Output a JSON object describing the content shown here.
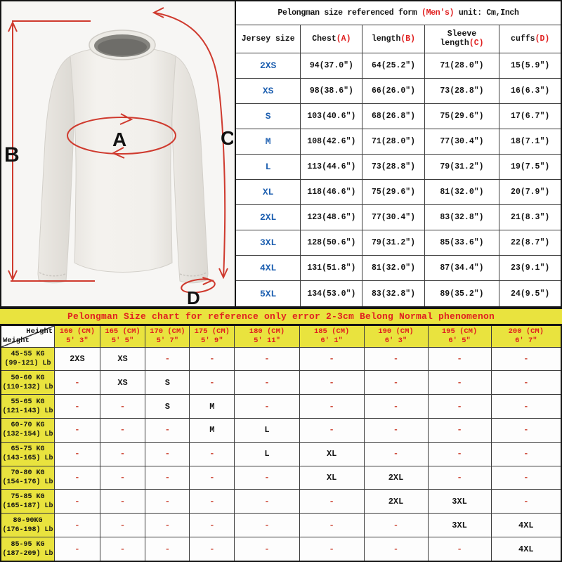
{
  "colors": {
    "accent_red": "#e02020",
    "size_blue": "#1d5fb0",
    "chart_yellow": "#e9e33e",
    "dash_red": "#cc4433",
    "arrow_red": "#cf3a2e"
  },
  "diagram": {
    "labels": {
      "a": "A",
      "b": "B",
      "c": "C",
      "d": "D"
    }
  },
  "size_table": {
    "title_prefix": "Pelongman size referenced form ",
    "title_highlight": "(Men's)",
    "title_suffix": "  unit: Cm,Inch",
    "columns": [
      {
        "label": "Jersey size",
        "letter": ""
      },
      {
        "label": "Chest",
        "letter": "(A)"
      },
      {
        "label": "length",
        "letter": "(B)"
      },
      {
        "label": "Sleeve length",
        "letter": "(C)"
      },
      {
        "label": "cuffs",
        "letter": "(D)"
      }
    ],
    "rows": [
      {
        "size": "2XS",
        "chest": "94(37.0\")",
        "length": "64(25.2\")",
        "sleeve": "71(28.0\")",
        "cuffs": "15(5.9\")"
      },
      {
        "size": "XS",
        "chest": "98(38.6\")",
        "length": "66(26.0\")",
        "sleeve": "73(28.8\")",
        "cuffs": "16(6.3\")"
      },
      {
        "size": "S",
        "chest": "103(40.6\")",
        "length": "68(26.8\")",
        "sleeve": "75(29.6\")",
        "cuffs": "17(6.7\")"
      },
      {
        "size": "M",
        "chest": "108(42.6\")",
        "length": "71(28.0\")",
        "sleeve": "77(30.4\")",
        "cuffs": "18(7.1\")"
      },
      {
        "size": "L",
        "chest": "113(44.6\")",
        "length": "73(28.8\")",
        "sleeve": "79(31.2\")",
        "cuffs": "19(7.5\")"
      },
      {
        "size": "XL",
        "chest": "118(46.6\")",
        "length": "75(29.6\")",
        "sleeve": "81(32.0\")",
        "cuffs": "20(7.9\")"
      },
      {
        "size": "2XL",
        "chest": "123(48.6\")",
        "length": "77(30.4\")",
        "sleeve": "83(32.8\")",
        "cuffs": "21(8.3\")"
      },
      {
        "size": "3XL",
        "chest": "128(50.6\")",
        "length": "79(31.2\")",
        "sleeve": "85(33.6\")",
        "cuffs": "22(8.7\")"
      },
      {
        "size": "4XL",
        "chest": "131(51.8\")",
        "length": "81(32.0\")",
        "sleeve": "87(34.4\")",
        "cuffs": "23(9.1\")"
      },
      {
        "size": "5XL",
        "chest": "134(53.0\")",
        "length": "83(32.8\")",
        "sleeve": "89(35.2\")",
        "cuffs": "24(9.5\")"
      }
    ]
  },
  "fit_chart": {
    "title": "Pelongman Size chart for reference only error 2-3cm Belong Normal phenomenon",
    "corner": {
      "height_label": "Height",
      "weight_label": "Weight"
    },
    "heights": [
      {
        "cm": "160 (CM)",
        "ft": "5′ 3″"
      },
      {
        "cm": "165 (CM)",
        "ft": "5′ 5″"
      },
      {
        "cm": "170 (CM)",
        "ft": "5′ 7″"
      },
      {
        "cm": "175 (CM)",
        "ft": "5′ 9″"
      },
      {
        "cm": "180 (CM)",
        "ft": "5′ 11″"
      },
      {
        "cm": "185 (CM)",
        "ft": "6′ 1″"
      },
      {
        "cm": "190 (CM)",
        "ft": "6′ 3″"
      },
      {
        "cm": "195 (CM)",
        "ft": "6′ 5″"
      },
      {
        "cm": "200 (CM)",
        "ft": "6′ 7″"
      }
    ],
    "rows": [
      {
        "kg": "45-55 KG",
        "lb": "(99-121) Lb",
        "cells": [
          "2XS",
          "XS",
          "-",
          "-",
          "-",
          "-",
          "-",
          "-",
          "-"
        ]
      },
      {
        "kg": "50-60 KG",
        "lb": "(110-132) Lb",
        "cells": [
          "-",
          "XS",
          "S",
          "-",
          "-",
          "-",
          "-",
          "-",
          "-"
        ]
      },
      {
        "kg": "55-65 KG",
        "lb": "(121-143) Lb",
        "cells": [
          "-",
          "-",
          "S",
          "M",
          "-",
          "-",
          "-",
          "-",
          "-"
        ]
      },
      {
        "kg": "60-70 KG",
        "lb": "(132-154) Lb",
        "cells": [
          "-",
          "-",
          "-",
          "M",
          "L",
          "-",
          "-",
          "-",
          "-"
        ]
      },
      {
        "kg": "65-75 KG",
        "lb": "(143-165) Lb",
        "cells": [
          "-",
          "-",
          "-",
          "-",
          "L",
          "XL",
          "-",
          "-",
          "-"
        ]
      },
      {
        "kg": "70-80 KG",
        "lb": "(154-176) Lb",
        "cells": [
          "-",
          "-",
          "-",
          "-",
          "-",
          "XL",
          "2XL",
          "-",
          "-"
        ]
      },
      {
        "kg": "75-85 KG",
        "lb": "(165-187) Lb",
        "cells": [
          "-",
          "-",
          "-",
          "-",
          "-",
          "-",
          "2XL",
          "3XL",
          "-"
        ]
      },
      {
        "kg": "80-90KG",
        "lb": "(176-198) Lb",
        "cells": [
          "-",
          "-",
          "-",
          "-",
          "-",
          "-",
          "-",
          "3XL",
          "4XL"
        ]
      },
      {
        "kg": "85-95 KG",
        "lb": "(187-209) Lb",
        "cells": [
          "-",
          "-",
          "-",
          "-",
          "-",
          "-",
          "-",
          "-",
          "4XL"
        ]
      }
    ]
  }
}
